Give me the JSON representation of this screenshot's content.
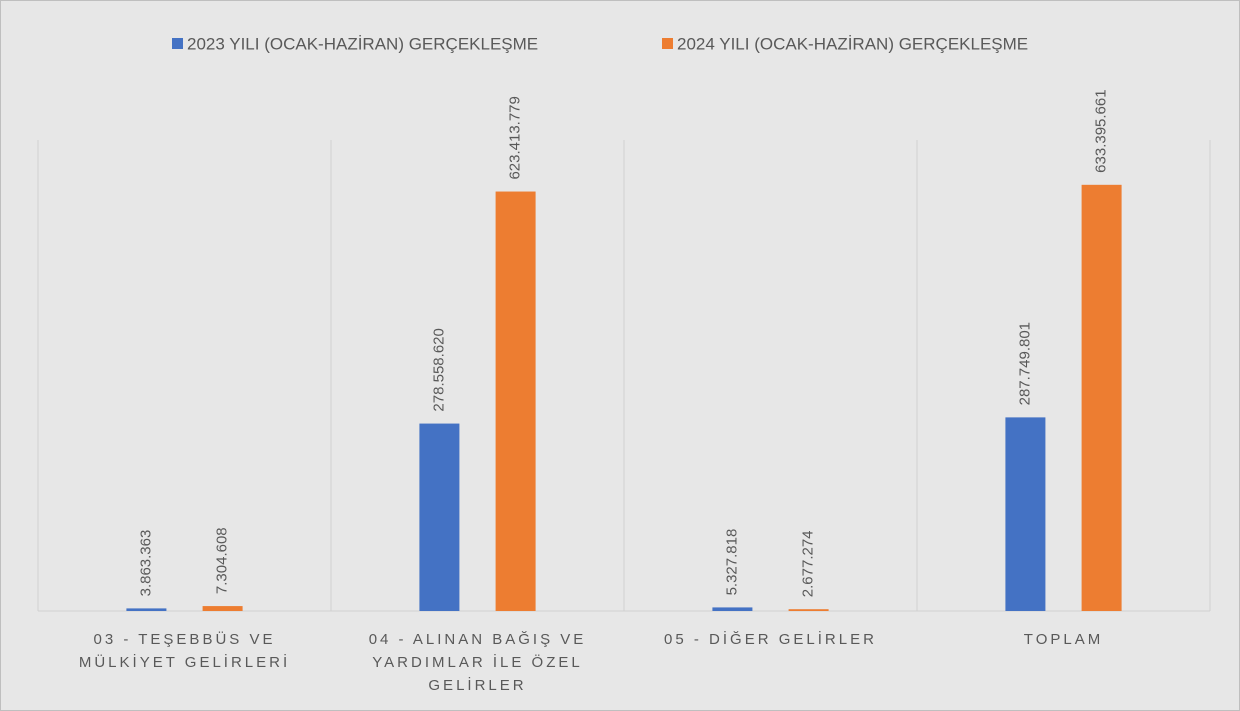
{
  "chart_data": {
    "type": "bar",
    "categories": [
      "03 - TEŞEBBÜS VE MÜLKİYET GELİRLERİ",
      "04 - ALINAN BAĞIŞ VE YARDIMLAR İLE ÖZEL GELİRLER",
      "05 - DİĞER GELİRLER",
      "TOPLAM"
    ],
    "series": [
      {
        "name": "2023 YILI (OCAK-HAZİRAN) GERÇEKLEŞME",
        "color": "#4472c4",
        "values": [
          3863363,
          278558620,
          5327818,
          287749801
        ],
        "value_labels": [
          "3.863.363",
          "278.558.620",
          "5.327.818",
          "287.749.801"
        ]
      },
      {
        "name": "2024 YILI (OCAK-HAZİRAN) GERÇEKLEŞME",
        "color": "#ed7d31",
        "values": [
          7304608,
          623413779,
          2677274,
          633395661
        ],
        "value_labels": [
          "7.304.608",
          "623.413.779",
          "2.677.274",
          "633.395.661"
        ]
      }
    ],
    "ylim": [
      0,
      700000000
    ],
    "legend": "top"
  }
}
